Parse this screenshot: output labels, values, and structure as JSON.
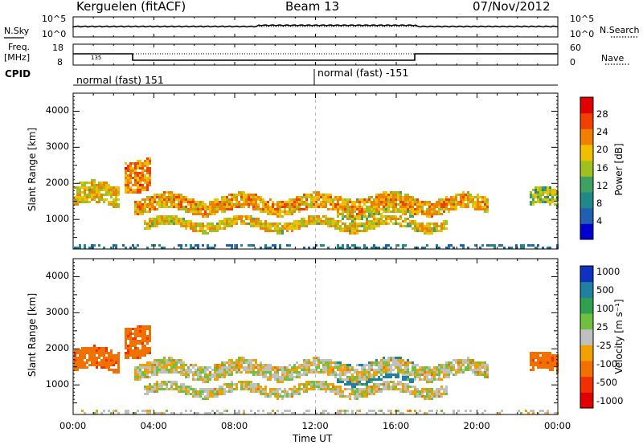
{
  "header": {
    "station": "Kerguelen (fitACF)",
    "beam": "Beam 13",
    "date": "07/Nov/2012"
  },
  "noise_panel": {
    "left_label": "N.Sky",
    "right_label": "N.Search",
    "left_ticks": [
      "10^5",
      "10^0"
    ],
    "right_ticks": [
      "10^5",
      "10^0"
    ]
  },
  "freq_panel": {
    "left_label_line1": "Freq.",
    "left_label_line2": "[MHz]",
    "right_label": "Nave",
    "left_ticks": [
      "18",
      "8"
    ],
    "right_ticks": [
      "60",
      "0"
    ],
    "marker": "135"
  },
  "cpid_panel": {
    "label": "CPID",
    "segment1": "normal (fast) 151",
    "segment2": "normal (fast) -151"
  },
  "chart_data": [
    {
      "type": "heatmap",
      "title": "",
      "xlabel": "",
      "ylabel": "Slant Range [km]",
      "x_ticks": [
        "00:00",
        "04:00",
        "08:00",
        "12:00",
        "16:00",
        "20:00",
        "00:00"
      ],
      "y_ticks": [
        "1000",
        "2000",
        "3000",
        "4000"
      ],
      "ylim": [
        180,
        4500
      ],
      "colorbar": {
        "label": "Power [dB]",
        "ticks": [
          "4",
          "8",
          "12",
          "16",
          "20",
          "24",
          "28"
        ],
        "range": [
          0,
          30
        ]
      }
    },
    {
      "type": "heatmap",
      "title": "",
      "xlabel": "Time UT",
      "ylabel": "Slant Range [km]",
      "x_ticks": [
        "00:00",
        "04:00",
        "08:00",
        "12:00",
        "16:00",
        "20:00",
        "00:00"
      ],
      "y_ticks": [
        "1000",
        "2000",
        "3000",
        "4000"
      ],
      "ylim": [
        180,
        4500
      ],
      "colorbar": {
        "label": "Velocity [m s⁻¹]",
        "ticks": [
          "1000",
          "500",
          "100",
          "25",
          "-25",
          "-100",
          "-500",
          "-1000"
        ]
      }
    }
  ],
  "colors": {
    "power_scale": [
      "#0000d0",
      "#2060b0",
      "#208888",
      "#40a060",
      "#a0c020",
      "#f0c000",
      "#f08000",
      "#f04000",
      "#e00000"
    ],
    "velocity_scale": [
      "#1030c0",
      "#2080a0",
      "#30a050",
      "#70c040",
      "#c0c0c0",
      "#f0a000",
      "#f07000",
      "#f03000",
      "#e00000"
    ]
  }
}
